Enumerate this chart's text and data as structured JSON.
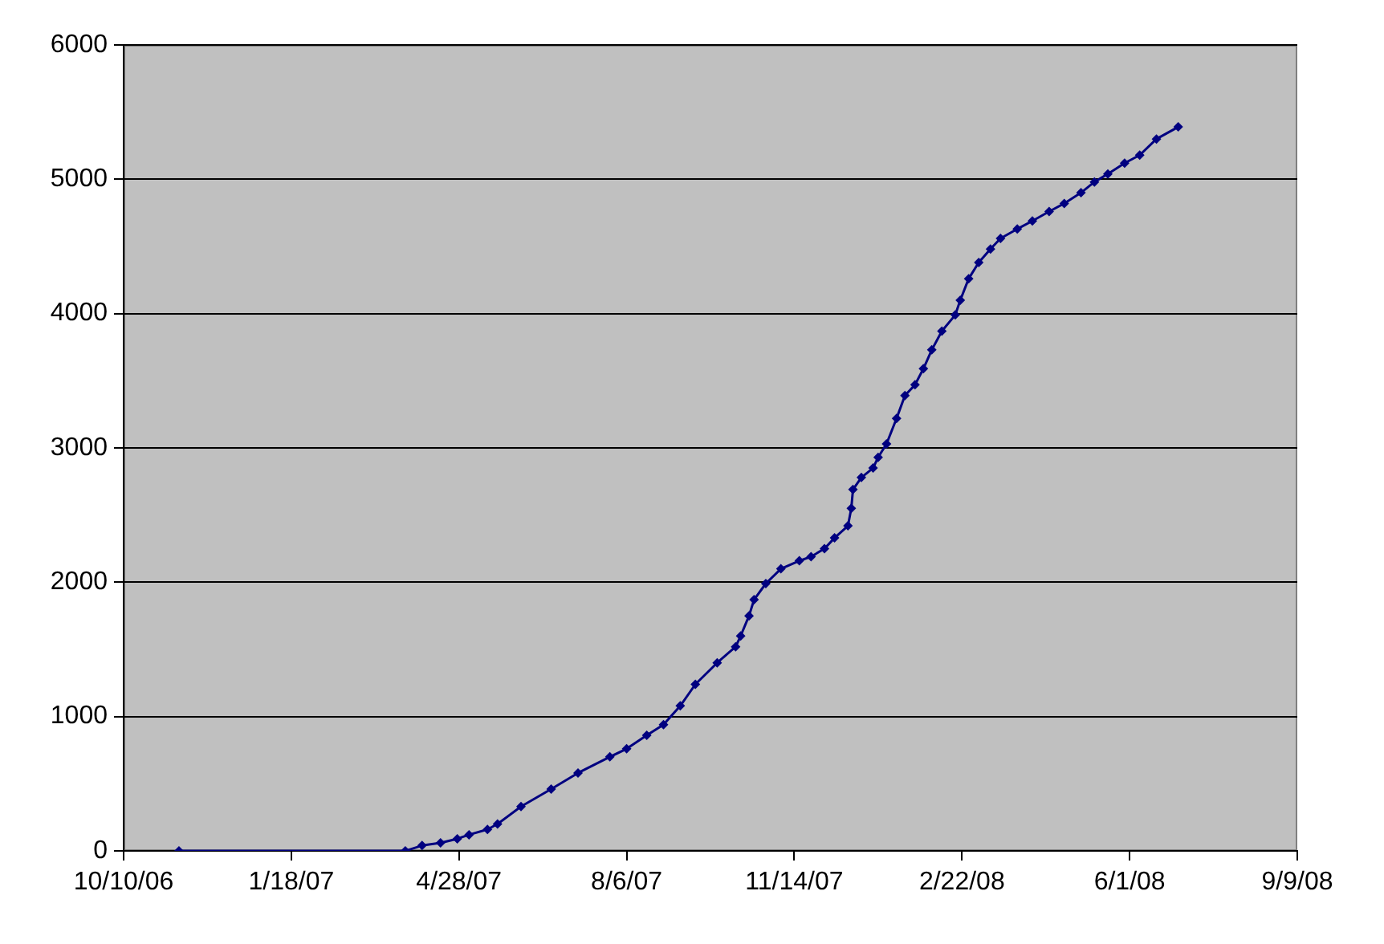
{
  "chart_data": {
    "type": "line",
    "color": "#000080",
    "marker": "diamond",
    "line_style": "solid",
    "grid": "y",
    "x": [
      "2006-11-12",
      "2007-03-27",
      "2007-04-06",
      "2007-04-17",
      "2007-04-27",
      "2007-05-04",
      "2007-05-15",
      "2007-05-21",
      "2007-06-04",
      "2007-06-22",
      "2007-07-08",
      "2007-07-27",
      "2007-08-06",
      "2007-08-18",
      "2007-08-28",
      "2007-09-07",
      "2007-09-16",
      "2007-09-29",
      "2007-10-10",
      "2007-10-13",
      "2007-10-18",
      "2007-10-21",
      "2007-10-28",
      "2007-11-06",
      "2007-11-17",
      "2007-11-24",
      "2007-12-02",
      "2007-12-08",
      "2007-12-16",
      "2007-12-18",
      "2007-12-19",
      "2007-12-24",
      "2007-12-31",
      "2008-01-03",
      "2008-01-08",
      "2008-01-14",
      "2008-01-19",
      "2008-01-25",
      "2008-01-30",
      "2008-02-04",
      "2008-02-10",
      "2008-02-18",
      "2008-02-21",
      "2008-02-26",
      "2008-03-03",
      "2008-03-10",
      "2008-03-16",
      "2008-03-26",
      "2008-04-04",
      "2008-04-14",
      "2008-04-23",
      "2008-05-03",
      "2008-05-11",
      "2008-05-19",
      "2008-05-29",
      "2008-06-07",
      "2008-06-17",
      "2008-06-30"
    ],
    "values": [
      0,
      0,
      40,
      60,
      90,
      120,
      160,
      200,
      330,
      460,
      580,
      700,
      760,
      860,
      940,
      1080,
      1240,
      1400,
      1520,
      1600,
      1750,
      1870,
      1990,
      2100,
      2160,
      2190,
      2250,
      2330,
      2420,
      2550,
      2690,
      2780,
      2850,
      2930,
      3030,
      3220,
      3390,
      3470,
      3590,
      3730,
      3870,
      3990,
      4100,
      4260,
      4380,
      4480,
      4560,
      4630,
      4690,
      4760,
      4820,
      4900,
      4980,
      5040,
      5120,
      5180,
      5300,
      5390
    ],
    "xlim": [
      "2006-10-10",
      "2008-09-09"
    ],
    "xticks": [
      {
        "value": "2006-10-10",
        "label": "10/10/06"
      },
      {
        "value": "2007-01-18",
        "label": "1/18/07"
      },
      {
        "value": "2007-04-28",
        "label": "4/28/07"
      },
      {
        "value": "2007-08-06",
        "label": "8/6/07"
      },
      {
        "value": "2007-11-14",
        "label": "11/14/07"
      },
      {
        "value": "2008-02-22",
        "label": "2/22/08"
      },
      {
        "value": "2008-06-01",
        "label": "6/1/08"
      },
      {
        "value": "2008-09-09",
        "label": "9/9/08"
      }
    ],
    "ylim": [
      0,
      6000
    ],
    "yticks": [
      0,
      1000,
      2000,
      3000,
      4000,
      5000,
      6000
    ]
  }
}
